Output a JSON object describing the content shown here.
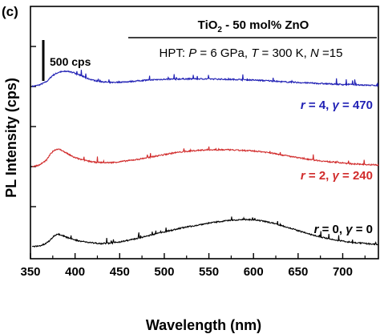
{
  "panel_label": "(c)",
  "chart_data": {
    "type": "line",
    "title": "",
    "xlabel": "Wavelength (nm)",
    "ylabel": "PL Intensity (cps)",
    "xlim": [
      350,
      740
    ],
    "xticks": [
      350,
      400,
      450,
      500,
      550,
      600,
      650,
      700
    ],
    "y_scale_bar": "500 cps",
    "legend_box": {
      "composition": {
        "a": "TiO",
        "sub": "2",
        "b": " - 50 mol% ZnO"
      },
      "condition": {
        "pre": "HPT: ",
        "P": "P",
        "p_val": " = 6 GPa, ",
        "T": "T",
        "t_val": " = 300 K, ",
        "N": "N",
        "n_val": " =15"
      }
    },
    "series": [
      {
        "color": "#1f1fb4",
        "label": {
          "r": "r",
          "r_val": " = 4, ",
          "g": "γ",
          "g_val": " = 470"
        },
        "baseline_cps": 2000,
        "x": [
          352,
          360,
          368,
          375,
          382,
          390,
          398,
          406,
          414,
          422,
          430,
          440,
          450,
          460,
          470,
          480,
          490,
          500,
          510,
          520,
          530,
          540,
          550,
          560,
          570,
          580,
          590,
          600,
          610,
          620,
          630,
          640,
          650,
          660,
          670,
          680,
          690,
          700,
          710,
          720,
          730,
          740
        ],
        "y": [
          0,
          20,
          60,
          140,
          180,
          190,
          175,
          140,
          100,
          75,
          60,
          50,
          55,
          60,
          70,
          80,
          85,
          90,
          92,
          95,
          95,
          95,
          95,
          92,
          90,
          88,
          85,
          80,
          75,
          70,
          60,
          55,
          50,
          45,
          40,
          35,
          30,
          25,
          25,
          20,
          15,
          15
        ]
      },
      {
        "color": "#d12b2b",
        "label": {
          "r": "r",
          "r_val": " = 2, ",
          "g": "γ",
          "g_val": " = 240"
        },
        "baseline_cps": 1000,
        "x": [
          352,
          360,
          368,
          372,
          376,
          380,
          384,
          390,
          398,
          406,
          414,
          422,
          430,
          440,
          450,
          460,
          470,
          480,
          490,
          500,
          510,
          520,
          530,
          540,
          550,
          560,
          570,
          580,
          590,
          600,
          610,
          620,
          630,
          640,
          650,
          660,
          670,
          680,
          690,
          700,
          710,
          720,
          730,
          740
        ],
        "y": [
          0,
          20,
          80,
          150,
          200,
          220,
          210,
          170,
          120,
          90,
          70,
          55,
          50,
          50,
          60,
          75,
          90,
          110,
          130,
          150,
          170,
          185,
          195,
          205,
          210,
          210,
          210,
          205,
          200,
          195,
          185,
          170,
          150,
          130,
          110,
          95,
          80,
          65,
          55,
          45,
          35,
          30,
          25,
          20
        ]
      },
      {
        "color": "#000000",
        "label": {
          "r": "r",
          "r_val": " = 0, ",
          "g": "γ",
          "g_val": " = 0"
        },
        "baseline_cps": 0,
        "x": [
          352,
          360,
          366,
          372,
          376,
          380,
          384,
          390,
          398,
          406,
          414,
          422,
          430,
          440,
          450,
          460,
          470,
          480,
          490,
          500,
          510,
          520,
          530,
          540,
          550,
          560,
          570,
          580,
          590,
          600,
          610,
          620,
          630,
          640,
          650,
          660,
          670,
          680,
          690,
          700,
          710,
          720,
          730,
          740
        ],
        "y": [
          0,
          10,
          30,
          80,
          130,
          160,
          150,
          120,
          90,
          70,
          55,
          45,
          40,
          45,
          60,
          80,
          105,
          130,
          160,
          185,
          210,
          235,
          255,
          275,
          295,
          310,
          325,
          335,
          340,
          335,
          320,
          300,
          270,
          235,
          200,
          165,
          135,
          110,
          85,
          70,
          55,
          45,
          35,
          30
        ]
      }
    ]
  }
}
